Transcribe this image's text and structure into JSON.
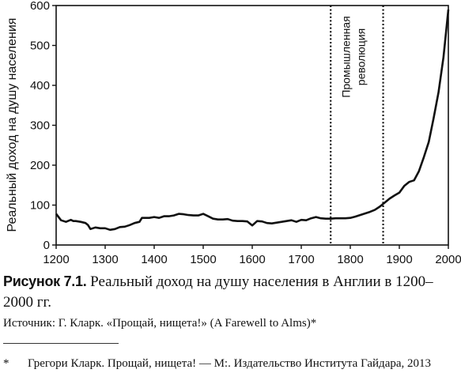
{
  "chart_data": {
    "type": "line",
    "xlabel": "",
    "ylabel": "Реальный доход на душу населения",
    "xlim": [
      1200,
      2000
    ],
    "ylim": [
      0,
      600
    ],
    "xticks": [
      1200,
      1300,
      1400,
      1500,
      1600,
      1700,
      1800,
      1900,
      2000
    ],
    "yticks": [
      0,
      100,
      200,
      300,
      400,
      500,
      600
    ],
    "grid": false,
    "legend": "none",
    "annotation": {
      "text_lines": [
        "Промышленная",
        "революция"
      ],
      "x_start": 1760,
      "x_end": 1867
    },
    "series": [
      {
        "x": [
          1200,
          1210,
          1220,
          1230,
          1235,
          1240,
          1250,
          1260,
          1265,
          1270,
          1275,
          1280,
          1290,
          1300,
          1310,
          1320,
          1330,
          1340,
          1350,
          1360,
          1370,
          1375,
          1380,
          1390,
          1400,
          1410,
          1420,
          1430,
          1440,
          1450,
          1460,
          1470,
          1480,
          1490,
          1500,
          1510,
          1520,
          1530,
          1540,
          1550,
          1560,
          1570,
          1580,
          1590,
          1600,
          1610,
          1620,
          1630,
          1640,
          1650,
          1660,
          1670,
          1680,
          1690,
          1700,
          1710,
          1720,
          1730,
          1740,
          1750,
          1760,
          1770,
          1780,
          1790,
          1800,
          1810,
          1820,
          1830,
          1840,
          1850,
          1860,
          1870,
          1880,
          1890,
          1900,
          1910,
          1920,
          1930,
          1940,
          1950,
          1960,
          1970,
          1980,
          1990,
          2000
        ],
        "y": [
          78,
          62,
          58,
          63,
          60,
          60,
          58,
          55,
          50,
          40,
          42,
          44,
          42,
          42,
          38,
          40,
          45,
          46,
          50,
          55,
          58,
          68,
          68,
          68,
          70,
          68,
          72,
          72,
          74,
          78,
          77,
          75,
          74,
          74,
          78,
          72,
          66,
          64,
          64,
          65,
          61,
          60,
          60,
          59,
          49,
          60,
          59,
          55,
          54,
          56,
          58,
          60,
          62,
          58,
          63,
          62,
          67,
          70,
          67,
          66,
          66,
          67,
          67,
          67,
          68,
          71,
          75,
          79,
          83,
          88,
          96,
          106,
          116,
          124,
          131,
          148,
          158,
          162,
          185,
          220,
          258,
          318,
          383,
          470,
          590
        ]
      }
    ]
  },
  "caption": {
    "label": "Рисунок 7.1.",
    "text": "Реальный доход на душу населения в Англии в 1200–2000 гг."
  },
  "source": "Источник: Г. Кларк. «Прощай, нищета!» (A Farewell to Alms)*",
  "footnote": {
    "mark": "*",
    "text": "Грегори Кларк. Прощай, нищета! — М:. Издательство Института Гайдара, 2013"
  }
}
